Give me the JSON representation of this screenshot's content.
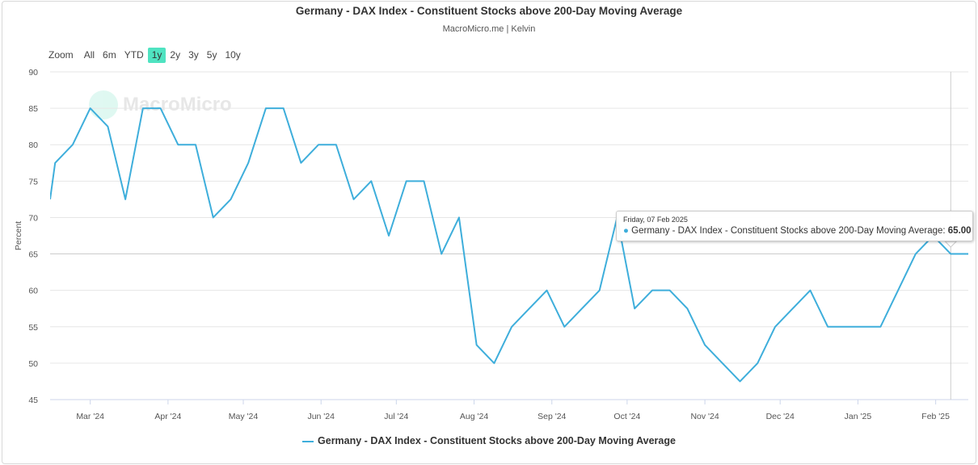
{
  "title": "Germany - DAX Index - Constituent Stocks above 200-Day Moving Average",
  "subtitle": "MacroMicro.me | Kelvin",
  "watermark": "MacroMicro",
  "zoom": {
    "label": "Zoom",
    "options": [
      "All",
      "6m",
      "YTD",
      "1y",
      "2y",
      "3y",
      "5y",
      "10y"
    ],
    "active": "1y"
  },
  "tooltip": {
    "date": "Friday, 07 Feb 2025",
    "series": "Germany - DAX Index - Constituent Stocks above 200-Day Moving Average: ",
    "value": "65.00"
  },
  "colors": {
    "line": "#3eaedb",
    "zoom_active": "#4fe3c1"
  },
  "chart_data": {
    "type": "line",
    "title": "Germany - DAX Index - Constituent Stocks above 200-Day Moving Average",
    "xlabel": "",
    "ylabel": "Percent",
    "ylim": [
      45,
      90
    ],
    "xlim": [
      "2024-02-14",
      "2025-02-14"
    ],
    "yticks": [
      45,
      50,
      55,
      60,
      65,
      70,
      75,
      80,
      85,
      90
    ],
    "xticks": [
      {
        "date": "2024-03-01",
        "label": "Mar '24"
      },
      {
        "date": "2024-04-01",
        "label": "Apr '24"
      },
      {
        "date": "2024-05-01",
        "label": "May '24"
      },
      {
        "date": "2024-06-01",
        "label": "Jun '24"
      },
      {
        "date": "2024-07-01",
        "label": "Jul '24"
      },
      {
        "date": "2024-08-01",
        "label": "Aug '24"
      },
      {
        "date": "2024-09-01",
        "label": "Sep '24"
      },
      {
        "date": "2024-10-01",
        "label": "Oct '24"
      },
      {
        "date": "2024-11-01",
        "label": "Nov '24"
      },
      {
        "date": "2024-12-01",
        "label": "Dec '24"
      },
      {
        "date": "2025-01-01",
        "label": "Jan '25"
      },
      {
        "date": "2025-02-01",
        "label": "Feb '25"
      }
    ],
    "grid": true,
    "legend": "bottom",
    "series": [
      {
        "name": "Germany - DAX Index - Constituent Stocks above 200-Day Moving Average",
        "x": [
          "2024-02-16",
          "2024-02-23",
          "2024-03-01",
          "2024-03-08",
          "2024-03-15",
          "2024-03-22",
          "2024-03-29",
          "2024-04-05",
          "2024-04-12",
          "2024-04-19",
          "2024-04-26",
          "2024-05-03",
          "2024-05-10",
          "2024-05-17",
          "2024-05-24",
          "2024-05-31",
          "2024-06-07",
          "2024-06-14",
          "2024-06-21",
          "2024-06-28",
          "2024-07-05",
          "2024-07-12",
          "2024-07-19",
          "2024-07-26",
          "2024-08-02",
          "2024-08-09",
          "2024-08-16",
          "2024-08-23",
          "2024-08-30",
          "2024-09-06",
          "2024-09-13",
          "2024-09-20",
          "2024-09-27",
          "2024-10-04",
          "2024-10-11",
          "2024-10-18",
          "2024-10-25",
          "2024-11-01",
          "2024-11-08",
          "2024-11-15",
          "2024-11-22",
          "2024-11-29",
          "2024-12-06",
          "2024-12-13",
          "2024-12-20",
          "2024-12-27",
          "2025-01-03",
          "2025-01-10",
          "2025-01-17",
          "2025-01-24",
          "2025-01-31",
          "2025-02-07",
          "2025-02-14"
        ],
        "values": [
          77.5,
          80,
          85,
          82.5,
          72.5,
          85,
          85,
          80,
          80,
          70,
          72.5,
          77.5,
          85,
          85,
          77.5,
          80,
          80,
          72.5,
          75,
          67.5,
          75,
          75,
          65,
          70,
          52.5,
          50,
          55,
          57.5,
          60,
          55,
          57.5,
          60,
          70,
          57.5,
          60,
          60,
          57.5,
          52.5,
          50,
          47.5,
          50,
          55,
          57.5,
          60,
          55,
          55,
          55,
          55,
          60,
          65,
          67.5,
          65,
          65
        ]
      }
    ],
    "highlight": {
      "date": "2025-02-07",
      "value": 65
    }
  }
}
